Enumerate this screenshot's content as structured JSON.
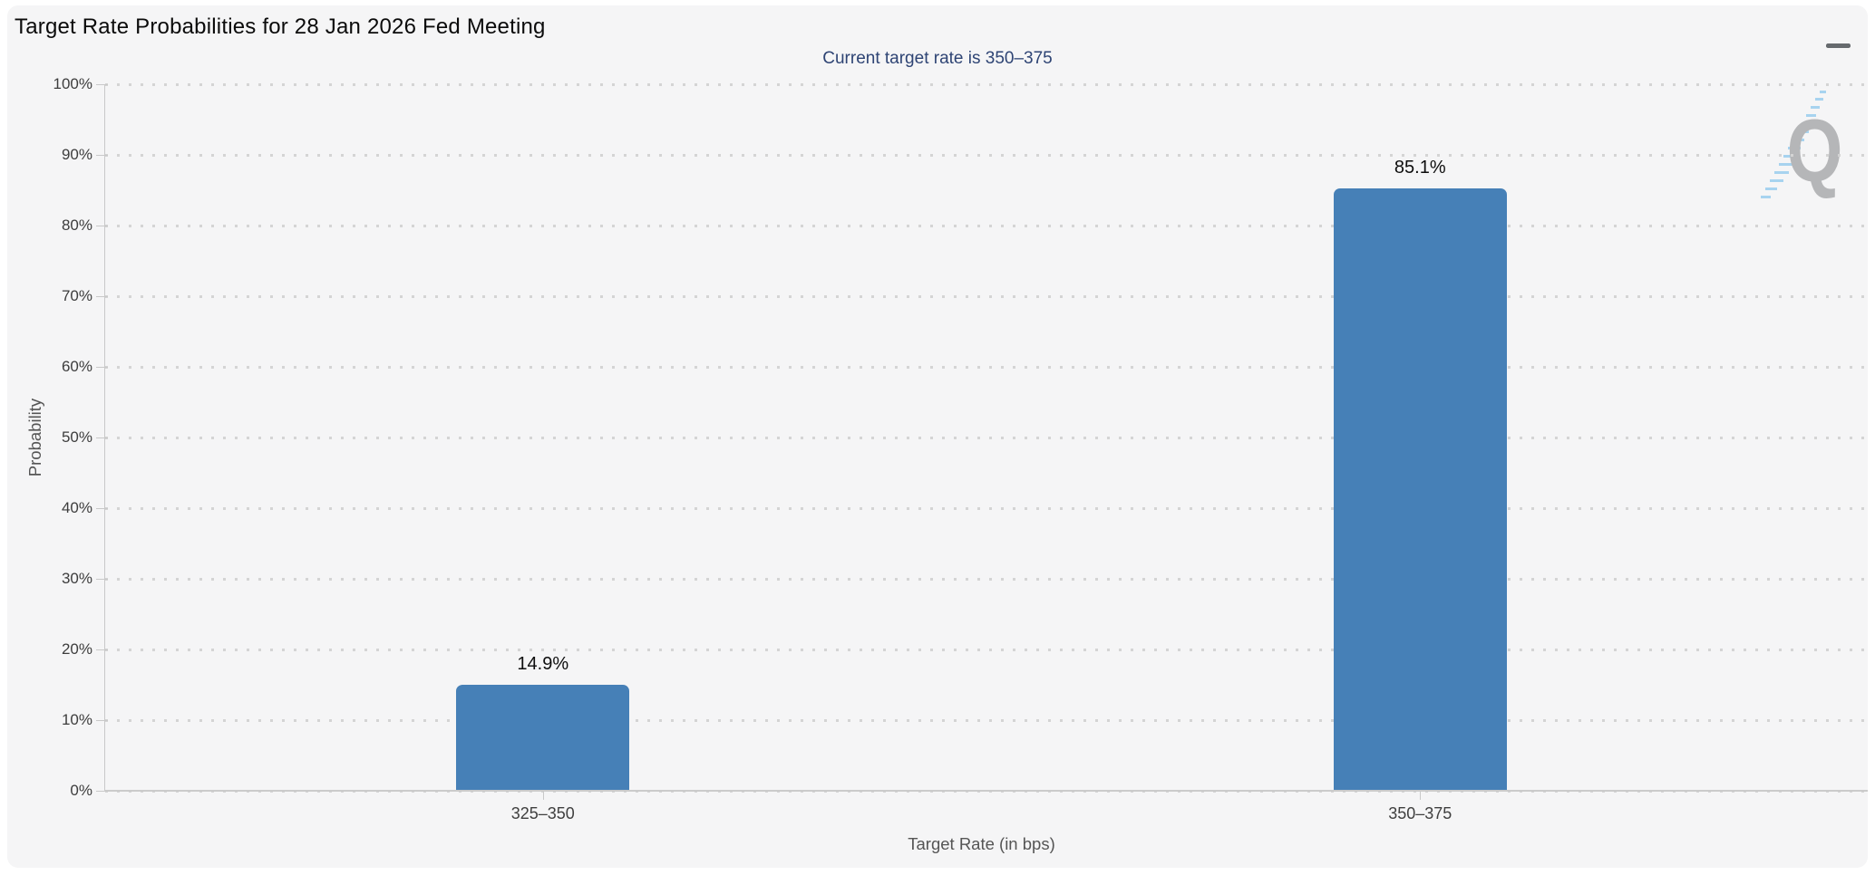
{
  "header": {
    "title": "Target Rate Probabilities for 28 Jan 2026 Fed Meeting",
    "subtitle": "Current target rate is 350–375"
  },
  "watermark": {
    "letter": "Q"
  },
  "chart_data": {
    "type": "bar",
    "title": "Target Rate Probabilities for 28 Jan 2026 Fed Meeting",
    "subtitle": "Current target rate is 350–375",
    "categories": [
      "325–350",
      "350–375"
    ],
    "values": [
      14.9,
      85.1
    ],
    "data_labels": [
      "14.9%",
      "85.1%"
    ],
    "xlabel": "Target Rate (in bps)",
    "ylabel": "Probability",
    "ylim": [
      0,
      100
    ],
    "ytick_step": 10,
    "ytick_suffix": "%",
    "grid": "horizontal-dotted",
    "legend": "none",
    "bar_color": "#4680b7",
    "colors": {
      "card_background": "#f5f5f6",
      "subtitle_text": "#2e4474",
      "gridline": "#d4d4d4",
      "axis_line": "#c9c9c9",
      "tick_label": "#3d3d3d",
      "axis_title": "#555555",
      "data_label": "#0e0e0e"
    }
  }
}
